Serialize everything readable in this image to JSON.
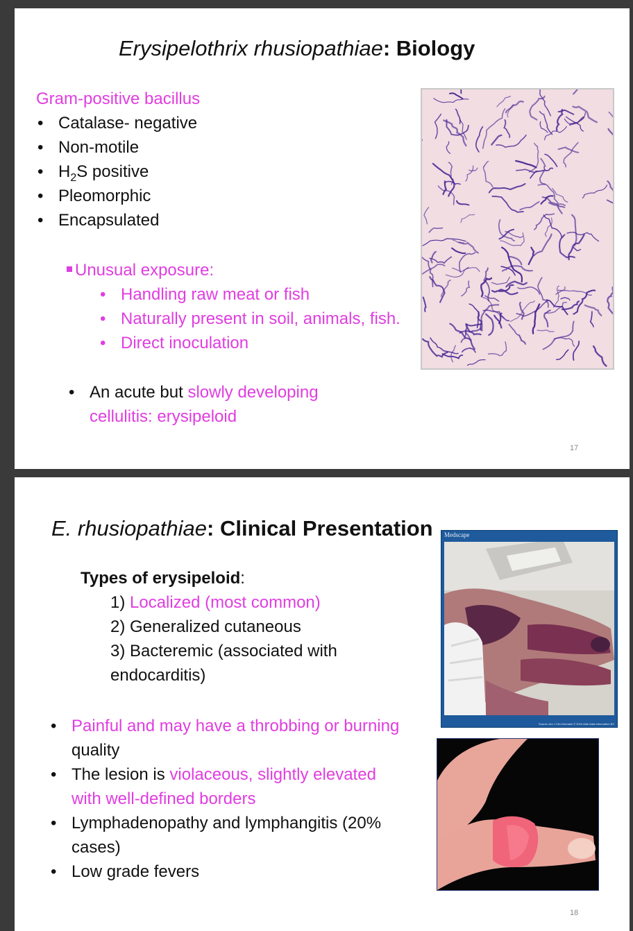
{
  "slide1": {
    "title_italic": "Erysipelothrix rhusiopathiae",
    "title_bold": ": Biology",
    "heading": "Gram-positive bacillus",
    "bullets": [
      "Catalase- negative",
      "Non-motile",
      "H",
      "2",
      "S positive",
      "Pleomorphic",
      "Encapsulated"
    ],
    "exposure_label": "Unusual exposure:",
    "exposure_items": [
      "Handling raw meat or fish",
      "Naturally present in soil, animals, fish.",
      "Direct inoculation"
    ],
    "acute_black": "An acute but ",
    "acute_pink": "slowly developing cellulitis: erysipeloid",
    "page": "17"
  },
  "slide2": {
    "title_italic": "E. rhusiopathiae",
    "title_bold": ": Clinical Presentation",
    "types_label": "Types of erysipeloid",
    "types_colon": ":",
    "type1_num": "1) ",
    "type1": "Localized (most common)",
    "type2": "2) Generalized cutaneous",
    "type3": "3) Bacteremic (associated with endocarditis)",
    "b1_pink": "Painful and may have a throbbing or burning",
    "b1_black": " quality",
    "b2_black": "The lesion is ",
    "b2_pink": "violaceous, slightly elevated with well-defined borders",
    "b3": "Lymphadenopathy and lymphangitis (20% cases)",
    "b4": "Low grade fevers",
    "medscape_label": "Medscape",
    "photo_source": "Source: Am J Clin Dermatol © 2010 Adis Data Information BV",
    "page": "18"
  },
  "colors": {
    "accent_pink": "#e03ee0",
    "micro_bg": "#f1dde2",
    "stain": "#4b2a95"
  }
}
